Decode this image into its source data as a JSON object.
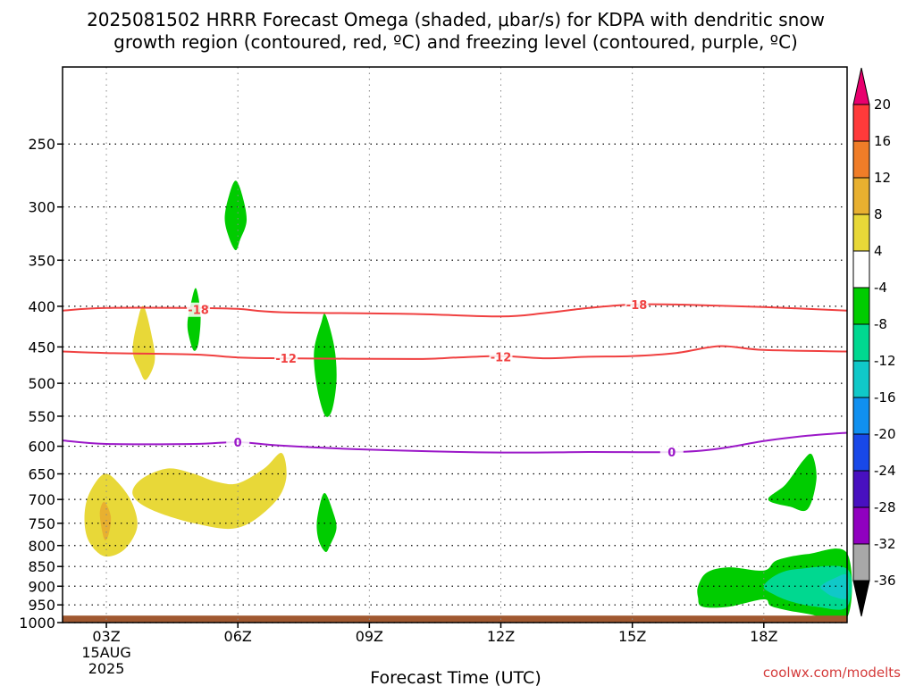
{
  "title": {
    "line1": "2025081502 HRRR Forecast Omega (shaded, μbar/s) for KDPA with dendritic snow",
    "line2": "growth region (contoured, red, ºC) and freezing level (contoured, purple, ºC)"
  },
  "credit": "coolwx.com/modelts",
  "chart_data": {
    "type": "time-height cross section",
    "xlabel": "Forecast Time (UTC)",
    "ylabel": "",
    "x_ticks": [
      {
        "hour": 3,
        "label": "03Z",
        "sub": [
          "15AUG",
          "2025"
        ]
      },
      {
        "hour": 6,
        "label": "06Z"
      },
      {
        "hour": 9,
        "label": "09Z"
      },
      {
        "hour": 12,
        "label": "12Z"
      },
      {
        "hour": 15,
        "label": "15Z"
      },
      {
        "hour": 18,
        "label": "18Z"
      }
    ],
    "xlim_hours": [
      2,
      19.9
    ],
    "y_ticks": [
      250,
      300,
      350,
      400,
      450,
      500,
      550,
      600,
      650,
      700,
      750,
      800,
      850,
      900,
      950,
      1000
    ],
    "ylim_hpa": [
      200,
      1000
    ],
    "y_scale": "log-pressure",
    "grid": "dotted",
    "colorbar": {
      "labels": [
        "20",
        "16",
        "12",
        "8",
        "4",
        "-4",
        "-8",
        "-12",
        "-16",
        "-20",
        "-24",
        "-28",
        "-32",
        "-36"
      ],
      "colors": [
        "#e8006e",
        "#ff3a3a",
        "#f07d28",
        "#e8b030",
        "#e8d838",
        "#ffffff",
        "#00cc00",
        "#00d890",
        "#10c8c8",
        "#1090f0",
        "#1848e8",
        "#4810c0",
        "#9000c0",
        "#a8a8a8",
        "#000000"
      ]
    },
    "contours": [
      {
        "name": "-18",
        "color": "#f04040",
        "points": [
          [
            2,
            405
          ],
          [
            3,
            402
          ],
          [
            5,
            402
          ],
          [
            6,
            403
          ],
          [
            7,
            407
          ],
          [
            10,
            409
          ],
          [
            12,
            412
          ],
          [
            13,
            408
          ],
          [
            14,
            402
          ],
          [
            15,
            398
          ],
          [
            16,
            398
          ],
          [
            18,
            401
          ],
          [
            19.9,
            405
          ]
        ],
        "labels": [
          [
            5.1,
            404
          ],
          [
            15.1,
            398
          ]
        ]
      },
      {
        "name": "-12",
        "color": "#f04040",
        "points": [
          [
            2,
            456
          ],
          [
            3,
            458
          ],
          [
            5,
            460
          ],
          [
            6,
            464
          ],
          [
            7,
            465
          ],
          [
            10,
            466
          ],
          [
            11,
            464
          ],
          [
            12,
            462
          ],
          [
            13,
            465
          ],
          [
            14,
            463
          ],
          [
            15,
            462
          ],
          [
            16,
            458
          ],
          [
            17,
            449
          ],
          [
            18,
            454
          ],
          [
            19.9,
            456
          ]
        ],
        "labels": [
          [
            7.1,
            465
          ],
          [
            12,
            463
          ]
        ]
      },
      {
        "name": "0",
        "color": "#9b18c8",
        "points": [
          [
            2,
            590
          ],
          [
            3,
            596
          ],
          [
            5,
            596
          ],
          [
            6,
            593
          ],
          [
            7,
            599
          ],
          [
            9,
            606
          ],
          [
            12,
            611
          ],
          [
            14,
            610
          ],
          [
            16,
            610
          ],
          [
            17,
            604
          ],
          [
            18,
            591
          ],
          [
            19,
            582
          ],
          [
            19.9,
            577
          ]
        ],
        "labels": [
          [
            6,
            593
          ],
          [
            15.9,
            610
          ]
        ]
      }
    ],
    "omega_regions": [
      {
        "value": 6,
        "color": "#e8d838",
        "points": [
          [
            2.5,
            740
          ],
          [
            2.6,
            690
          ],
          [
            2.95,
            650
          ],
          [
            3.3,
            670
          ],
          [
            3.6,
            710
          ],
          [
            3.7,
            760
          ],
          [
            3.4,
            810
          ],
          [
            2.95,
            825
          ],
          [
            2.6,
            790
          ]
        ]
      },
      {
        "value": 10,
        "color": "#e8b030",
        "points": [
          [
            2.85,
            730
          ],
          [
            2.95,
            705
          ],
          [
            3.1,
            735
          ],
          [
            3.05,
            775
          ],
          [
            2.95,
            785
          ]
        ]
      },
      {
        "value": 6,
        "color": "#e8d838",
        "points": [
          [
            3.6,
            455
          ],
          [
            3.7,
            420
          ],
          [
            3.85,
            400
          ],
          [
            4.05,
            440
          ],
          [
            4.1,
            470
          ],
          [
            3.9,
            495
          ],
          [
            3.75,
            480
          ]
        ]
      },
      {
        "value": 6,
        "color": "#e8d838",
        "points": [
          [
            3.6,
            690
          ],
          [
            3.8,
            660
          ],
          [
            4.4,
            640
          ],
          [
            5,
            650
          ],
          [
            5.5,
            665
          ],
          [
            6,
            668
          ],
          [
            6.6,
            640
          ],
          [
            7.0,
            612
          ],
          [
            7.1,
            660
          ],
          [
            6.8,
            710
          ],
          [
            6.0,
            760
          ],
          [
            5.0,
            750
          ],
          [
            4.0,
            720
          ]
        ]
      },
      {
        "value": -6,
        "color": "#00cc00",
        "points": [
          [
            5.7,
            310
          ],
          [
            5.8,
            290
          ],
          [
            5.95,
            278
          ],
          [
            6.1,
            290
          ],
          [
            6.2,
            312
          ],
          [
            6.05,
            330
          ],
          [
            5.95,
            340
          ],
          [
            5.8,
            328
          ]
        ]
      },
      {
        "value": -6,
        "color": "#00cc00",
        "points": [
          [
            4.85,
            420
          ],
          [
            4.95,
            392
          ],
          [
            5.05,
            380
          ],
          [
            5.15,
            410
          ],
          [
            5.1,
            445
          ],
          [
            5.0,
            455
          ],
          [
            4.9,
            440
          ]
        ]
      },
      {
        "value": -6,
        "color": "#00cc00",
        "points": [
          [
            7.75,
            450
          ],
          [
            7.9,
            420
          ],
          [
            8.0,
            410
          ],
          [
            8.2,
            450
          ],
          [
            8.25,
            495
          ],
          [
            8.15,
            540
          ],
          [
            8.0,
            550
          ],
          [
            7.85,
            520
          ],
          [
            7.75,
            480
          ]
        ]
      },
      {
        "value": -6,
        "color": "#00cc00",
        "points": [
          [
            7.8,
            750
          ],
          [
            7.9,
            700
          ],
          [
            8.0,
            688
          ],
          [
            8.15,
            720
          ],
          [
            8.25,
            760
          ],
          [
            8.1,
            800
          ],
          [
            8.0,
            815
          ],
          [
            7.85,
            790
          ]
        ]
      },
      {
        "value": -6,
        "color": "#00cc00",
        "points": [
          [
            18.1,
            700
          ],
          [
            18.5,
            670
          ],
          [
            18.9,
            625
          ],
          [
            19.1,
            615
          ],
          [
            19.2,
            660
          ],
          [
            19.0,
            720
          ],
          [
            18.6,
            715
          ]
        ]
      },
      {
        "value": -6,
        "color": "#00cc00",
        "points": [
          [
            16.5,
            900
          ],
          [
            16.7,
            865
          ],
          [
            17.2,
            852
          ],
          [
            18.0,
            860
          ],
          [
            18.3,
            835
          ],
          [
            19.0,
            820
          ],
          [
            19.9,
            818
          ],
          [
            19.9,
            985
          ],
          [
            19.0,
            975
          ],
          [
            18.2,
            955
          ],
          [
            18.0,
            935
          ],
          [
            17.2,
            955
          ],
          [
            16.6,
            955
          ],
          [
            16.5,
            930
          ]
        ]
      },
      {
        "value": -10,
        "color": "#00d890",
        "points": [
          [
            18.0,
            900
          ],
          [
            18.3,
            870
          ],
          [
            18.8,
            856
          ],
          [
            19.9,
            856
          ],
          [
            19.9,
            955
          ],
          [
            19.2,
            955
          ],
          [
            18.6,
            940
          ],
          [
            18.2,
            920
          ]
        ]
      },
      {
        "value": -14,
        "color": "#10c8c8",
        "points": [
          [
            19.3,
            900
          ],
          [
            19.6,
            880
          ],
          [
            19.9,
            872
          ],
          [
            19.9,
            930
          ],
          [
            19.6,
            928
          ],
          [
            19.4,
            915
          ]
        ]
      }
    ],
    "ground": {
      "color": "#a05830",
      "top_hpa": 980
    }
  },
  "icons": [
    "colorbar-up-arrow",
    "colorbar-down-arrow"
  ]
}
